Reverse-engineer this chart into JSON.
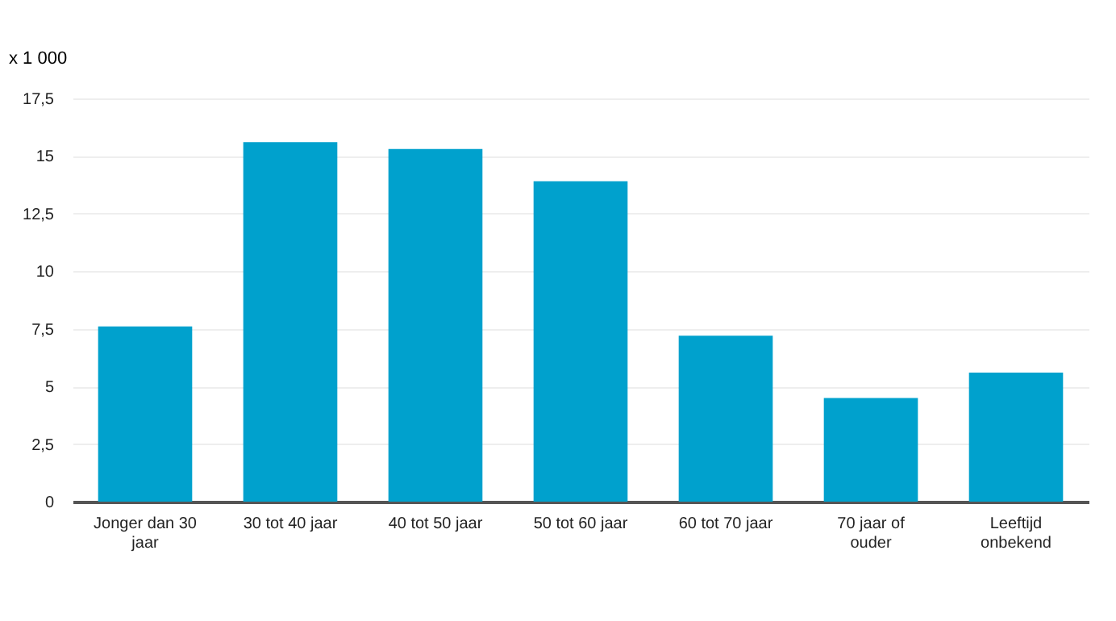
{
  "chart_data": {
    "type": "bar",
    "ylabel": "x 1 000",
    "categories": [
      "Jonger dan 30 jaar",
      "30 tot 40 jaar",
      "40 tot 50 jaar",
      "50 tot 60 jaar",
      "60 tot 70 jaar",
      "70 jaar of ouder",
      "Leeftijd onbekend"
    ],
    "values": [
      7.6,
      15.6,
      15.3,
      13.9,
      7.2,
      4.5,
      5.6
    ],
    "color": "#00a1cd",
    "ylim": [
      0,
      17.5
    ],
    "yticks": [
      0,
      {
        "value": 2.5,
        "label": "2,5"
      },
      5,
      {
        "value": 7.5,
        "label": "7,5"
      },
      10,
      {
        "value": 12.5,
        "label": "12,5"
      },
      15,
      {
        "value": 17.5,
        "label": "17,5"
      }
    ],
    "grid": "y"
  }
}
